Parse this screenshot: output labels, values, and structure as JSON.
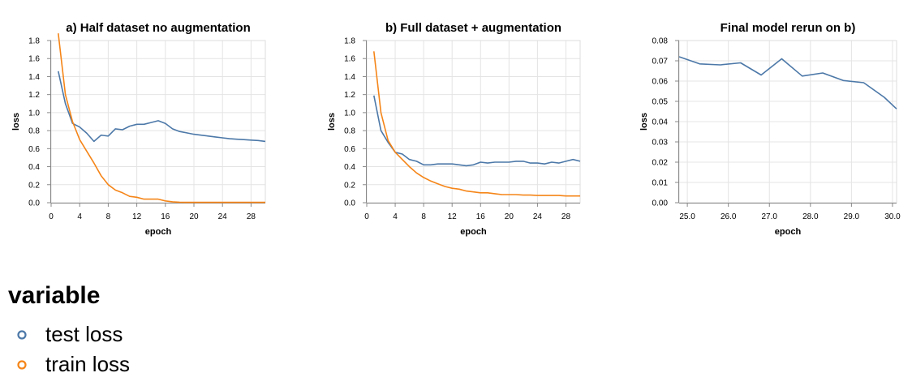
{
  "chart_data": [
    {
      "type": "line",
      "title": "a) Half dataset no augmentation",
      "xlabel": "epoch",
      "ylabel": "loss",
      "xlim": [
        0,
        30
      ],
      "ylim": [
        0,
        1.8
      ],
      "xticks": [
        0,
        4,
        8,
        12,
        16,
        20,
        24,
        28
      ],
      "xtick_labels": [
        "0",
        "4",
        "8",
        "12",
        "16",
        "20",
        "24",
        "28"
      ],
      "yticks": [
        0,
        0.2,
        0.4,
        0.6,
        0.8,
        1.0,
        1.2,
        1.4,
        1.6,
        1.8
      ],
      "ytick_labels": [
        "0.0",
        "0.2",
        "0.4",
        "0.6",
        "0.8",
        "1.0",
        "1.2",
        "1.4",
        "1.6",
        "1.8"
      ],
      "grid": true,
      "series": [
        {
          "name": "test loss",
          "color": "#4c78a8",
          "x": [
            1,
            2,
            3,
            4,
            5,
            6,
            7,
            8,
            9,
            10,
            11,
            12,
            13,
            14,
            15,
            16,
            17,
            18,
            19,
            20,
            21,
            22,
            23,
            24,
            25,
            26,
            27,
            28,
            29,
            30
          ],
          "values": [
            1.46,
            1.1,
            0.88,
            0.84,
            0.77,
            0.68,
            0.75,
            0.74,
            0.82,
            0.81,
            0.85,
            0.87,
            0.87,
            0.89,
            0.91,
            0.88,
            0.82,
            0.79,
            0.775,
            0.76,
            0.75,
            0.74,
            0.73,
            0.72,
            0.71,
            0.705,
            0.7,
            0.695,
            0.69,
            0.68
          ]
        },
        {
          "name": "train loss",
          "color": "#f58518",
          "x": [
            1,
            2,
            3,
            4,
            5,
            6,
            7,
            8,
            9,
            10,
            11,
            12,
            13,
            14,
            15,
            16,
            17,
            18,
            19,
            20,
            21,
            22,
            23,
            24,
            25,
            26,
            27,
            28,
            29,
            30
          ],
          "values": [
            1.88,
            1.2,
            0.9,
            0.7,
            0.57,
            0.44,
            0.3,
            0.2,
            0.14,
            0.11,
            0.07,
            0.06,
            0.04,
            0.04,
            0.04,
            0.02,
            0.01,
            0.005,
            0.004,
            0.004,
            0.004,
            0.004,
            0.004,
            0.004,
            0.004,
            0.004,
            0.004,
            0.004,
            0.004,
            0.004
          ]
        }
      ]
    },
    {
      "type": "line",
      "title": "b) Full dataset + augmentation",
      "xlabel": "epoch",
      "ylabel": "loss",
      "xlim": [
        0,
        30
      ],
      "ylim": [
        0,
        1.8
      ],
      "xticks": [
        0,
        4,
        8,
        12,
        16,
        20,
        24,
        28
      ],
      "xtick_labels": [
        "0",
        "4",
        "8",
        "12",
        "16",
        "20",
        "24",
        "28"
      ],
      "yticks": [
        0,
        0.2,
        0.4,
        0.6,
        0.8,
        1.0,
        1.2,
        1.4,
        1.6,
        1.8
      ],
      "ytick_labels": [
        "0.0",
        "0.2",
        "0.4",
        "0.6",
        "0.8",
        "1.0",
        "1.2",
        "1.4",
        "1.6",
        "1.8"
      ],
      "grid": true,
      "series": [
        {
          "name": "test loss",
          "color": "#4c78a8",
          "x": [
            1,
            2,
            3,
            4,
            5,
            6,
            7,
            8,
            9,
            10,
            11,
            12,
            13,
            14,
            15,
            16,
            17,
            18,
            19,
            20,
            21,
            22,
            23,
            24,
            25,
            26,
            27,
            28,
            29,
            30
          ],
          "values": [
            1.19,
            0.8,
            0.67,
            0.56,
            0.54,
            0.48,
            0.46,
            0.42,
            0.42,
            0.43,
            0.43,
            0.43,
            0.42,
            0.41,
            0.42,
            0.45,
            0.44,
            0.45,
            0.45,
            0.45,
            0.46,
            0.46,
            0.44,
            0.44,
            0.43,
            0.45,
            0.44,
            0.46,
            0.48,
            0.46
          ]
        },
        {
          "name": "train loss",
          "color": "#f58518",
          "x": [
            1,
            2,
            3,
            4,
            5,
            6,
            7,
            8,
            9,
            10,
            11,
            12,
            13,
            14,
            15,
            16,
            17,
            18,
            19,
            20,
            21,
            22,
            23,
            24,
            25,
            26,
            27,
            28,
            29,
            30
          ],
          "values": [
            1.68,
            1.0,
            0.69,
            0.56,
            0.48,
            0.4,
            0.33,
            0.28,
            0.24,
            0.21,
            0.18,
            0.16,
            0.15,
            0.13,
            0.12,
            0.11,
            0.11,
            0.1,
            0.09,
            0.09,
            0.09,
            0.085,
            0.085,
            0.08,
            0.08,
            0.08,
            0.08,
            0.075,
            0.075,
            0.075
          ]
        }
      ]
    },
    {
      "type": "line",
      "title": "Final model rerun on b)",
      "xlabel": "epoch",
      "ylabel": "loss",
      "xlim": [
        24.8,
        30.1
      ],
      "ylim": [
        0,
        0.08
      ],
      "xticks": [
        25,
        26,
        27,
        28,
        29,
        30
      ],
      "xtick_labels": [
        "25.0",
        "26.0",
        "27.0",
        "28.0",
        "29.0",
        "30.0"
      ],
      "yticks": [
        0,
        0.01,
        0.02,
        0.03,
        0.04,
        0.05,
        0.06,
        0.07,
        0.08
      ],
      "ytick_labels": [
        "0.00",
        "0.01",
        "0.02",
        "0.03",
        "0.04",
        "0.05",
        "0.06",
        "0.07",
        "0.08"
      ],
      "grid": true,
      "series": [
        {
          "name": "test loss",
          "color": "#4c78a8",
          "x": [
            24.8,
            25.3,
            25.8,
            26.3,
            26.8,
            27.3,
            27.8,
            28.3,
            28.8,
            29.3,
            29.8,
            30.1
          ],
          "values": [
            0.072,
            0.0685,
            0.068,
            0.069,
            0.063,
            0.071,
            0.0625,
            0.064,
            0.0603,
            0.0592,
            0.052,
            0.0463
          ]
        }
      ]
    }
  ],
  "legend": {
    "title": "variable",
    "items": [
      {
        "label": "test loss",
        "color": "#4c78a8"
      },
      {
        "label": "train loss",
        "color": "#f58518"
      }
    ]
  }
}
